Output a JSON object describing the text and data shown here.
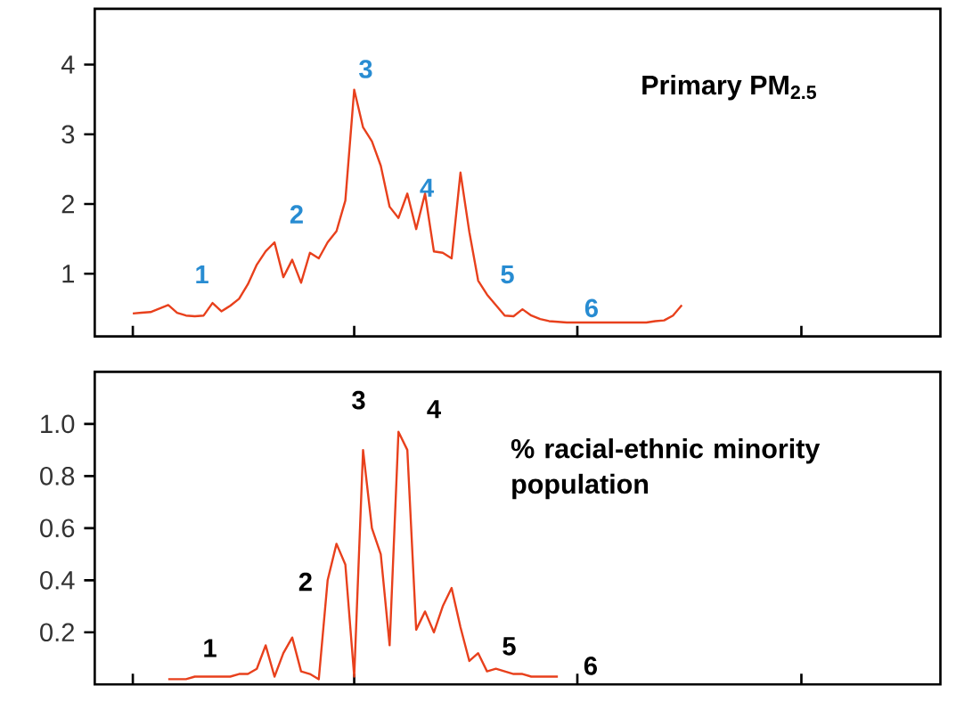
{
  "chart_data": [
    {
      "type": "line",
      "title": "Primary PM$_{2.5}$",
      "ylim": [
        0.1,
        4.8
      ],
      "tick_labels": "y",
      "categories": [
        null,
        null,
        null,
        null,
        null,
        null,
        null,
        null,
        null,
        null,
        null,
        null,
        null,
        null,
        null,
        null,
        null,
        null,
        null,
        null,
        null,
        null,
        null,
        null,
        null,
        null,
        null,
        null,
        null,
        null,
        null,
        null,
        null,
        null,
        null,
        null,
        null,
        null,
        null,
        null,
        null,
        null,
        null,
        null,
        null,
        null,
        null,
        null,
        null,
        null,
        null,
        null,
        null,
        null,
        null,
        null,
        null,
        null,
        null,
        null,
        null,
        null,
        null
      ],
      "yticks": [
        1,
        2,
        3,
        4
      ],
      "series": [
        {
          "color": "#e8401c",
          "values": [
            0.43,
            0.44,
            0.45,
            0.5,
            0.55,
            0.44,
            0.4,
            0.39,
            0.4,
            0.58,
            0.46,
            0.54,
            0.64,
            0.85,
            1.13,
            1.32,
            1.45,
            0.95,
            1.2,
            0.87,
            1.3,
            1.22,
            1.45,
            1.61,
            2.05,
            3.64,
            3.1,
            2.9,
            2.55,
            1.96,
            1.8,
            2.15,
            1.64,
            2.15,
            1.32,
            1.3,
            1.22,
            2.45,
            1.6,
            0.9,
            0.7,
            0.55,
            0.4,
            0.39,
            0.49,
            0.4,
            0.35,
            0.32,
            0.31,
            0.3,
            0.3,
            0.3,
            0.3,
            0.3,
            0.3,
            0.3,
            0.3,
            0.3,
            0.3,
            0.32,
            0.33,
            0.4,
            0.55
          ]
        }
      ],
      "annotations": [
        "1",
        "2",
        "3",
        "4",
        "5",
        "6"
      ]
    },
    {
      "type": "line",
      "title": "% racial-ethnic minority population",
      "ylim": [
        0,
        1.2
      ],
      "tick_labels": "y",
      "categories": [
        null,
        null,
        null,
        null,
        null,
        null,
        null,
        null,
        null,
        null,
        null,
        null,
        null,
        null,
        null,
        null,
        null,
        null,
        null,
        null,
        null,
        null,
        null,
        null,
        null,
        null,
        null,
        null,
        null,
        null,
        null,
        null,
        null,
        null,
        null,
        null,
        null,
        null,
        null,
        null,
        null,
        null,
        null,
        null,
        null,
        null,
        null,
        null,
        null,
        null,
        null,
        null,
        null,
        null,
        null,
        null,
        null,
        null,
        null,
        null,
        null,
        null,
        null
      ],
      "yticks": [
        0.2,
        0.4,
        0.6,
        0.8,
        {
          "value": 1.0,
          "label": "1.0"
        }
      ],
      "series": [
        {
          "color": "#e8401c",
          "values": [
            null,
            null,
            null,
            null,
            0.02,
            0.02,
            0.02,
            0.03,
            0.03,
            0.03,
            0.03,
            0.03,
            0.04,
            0.04,
            0.06,
            0.15,
            0.03,
            0.12,
            0.18,
            0.05,
            0.04,
            0.02,
            0.4,
            0.54,
            0.46,
            0.03,
            0.9,
            0.6,
            0.5,
            0.15,
            0.97,
            0.9,
            0.21,
            0.28,
            0.2,
            0.3,
            0.37,
            0.22,
            0.09,
            0.12,
            0.05,
            0.06,
            0.05,
            0.04,
            0.04,
            0.03,
            0.03,
            0.03,
            0.03,
            null,
            null,
            null,
            null,
            null,
            null,
            null,
            null,
            null,
            null,
            null,
            null,
            null,
            null
          ]
        }
      ],
      "annotations": [
        "1",
        "2",
        "3",
        "4",
        "5",
        "6"
      ]
    }
  ]
}
